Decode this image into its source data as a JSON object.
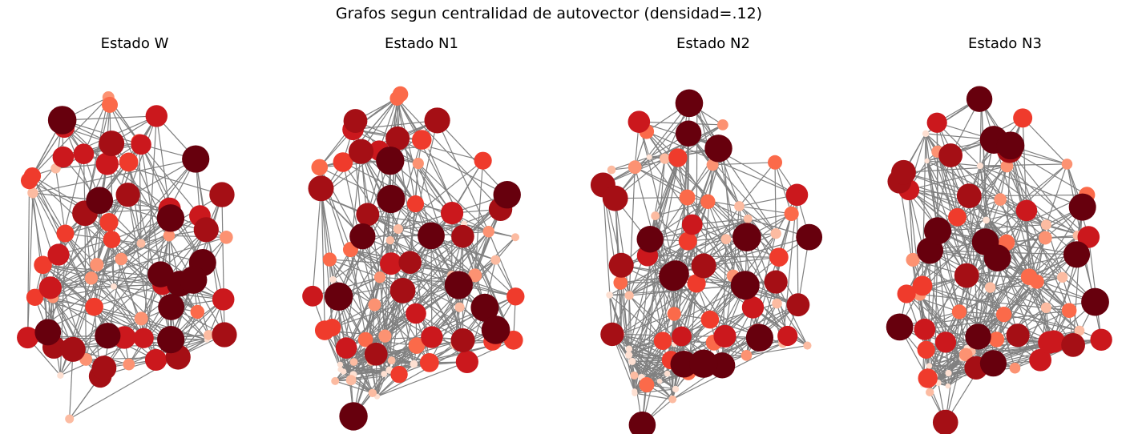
{
  "figure": {
    "title": "Grafos segun centralidad de autovector (densidad=.12)"
  },
  "panels": [
    {
      "title": "Estado W"
    },
    {
      "title": "Estado N1"
    },
    {
      "title": "Estado N2"
    },
    {
      "title": "Estado N3"
    }
  ],
  "style": {
    "edge_color": "#808080",
    "colormap": "Reds",
    "colormap_stops": [
      "#fee0d2",
      "#fcbba1",
      "#fc9272",
      "#fb6a4a",
      "#ef3b2c",
      "#cb181d",
      "#a50f15",
      "#67000d"
    ]
  }
}
